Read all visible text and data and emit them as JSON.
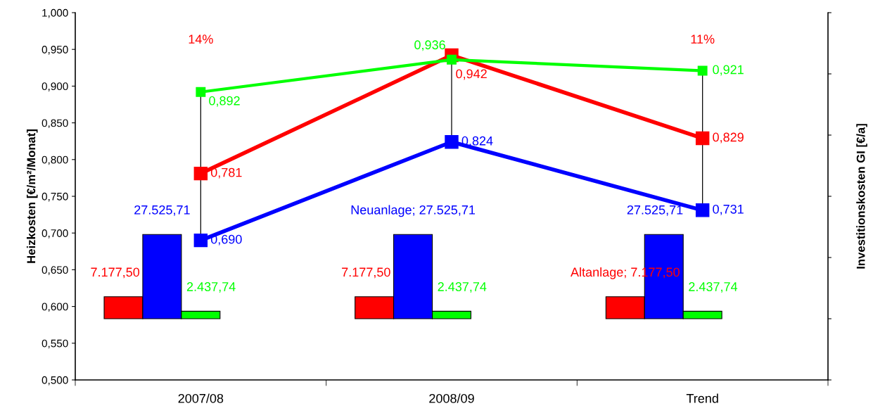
{
  "chart_data": {
    "type": "line",
    "ylabel": "Heizkosten [€/m²/Monat]",
    "y2label": "Investitionskosten GI [€/a]",
    "categories": [
      "2007/08",
      "2008/09",
      "Trend"
    ],
    "ylim": [
      0.5,
      1.0
    ],
    "yticks": [
      {
        "value": 0.5,
        "label": "0,500"
      },
      {
        "value": 0.55,
        "label": "0,550"
      },
      {
        "value": 0.6,
        "label": "0,600"
      },
      {
        "value": 0.65,
        "label": "0,650"
      },
      {
        "value": 0.7,
        "label": "0,700"
      },
      {
        "value": 0.75,
        "label": "0,750"
      },
      {
        "value": 0.8,
        "label": "0,800"
      },
      {
        "value": 0.85,
        "label": "0,850"
      },
      {
        "value": 0.9,
        "label": "0,900"
      },
      {
        "value": 0.95,
        "label": "0,950"
      },
      {
        "value": 1.0,
        "label": "1,000"
      }
    ],
    "y2lim": [
      -20000,
      100000
    ],
    "y2ticks": [
      {
        "value": -20000,
        "label": null
      },
      {
        "value": 0,
        "label": null
      },
      {
        "value": 20000,
        "label": null
      },
      {
        "value": 40000,
        "label": null
      },
      {
        "value": 60000,
        "label": null
      },
      {
        "value": 80000,
        "label": null
      },
      {
        "value": 100000,
        "label": null
      }
    ],
    "series": [
      {
        "type": "bar",
        "axis": "y2",
        "color": "#ff0000",
        "values": [
          7177.5,
          7177.5,
          7177.5
        ],
        "value_labels": [
          "7.177,50",
          "7.177,50",
          "Altanlage; 7.177,50"
        ]
      },
      {
        "type": "bar",
        "axis": "y2",
        "color": "#0000ff",
        "values": [
          27525.71,
          27525.71,
          27525.71
        ],
        "value_labels": [
          "27.525,71",
          "Neuanlage; 27.525,71",
          "27.525,71"
        ]
      },
      {
        "type": "bar",
        "axis": "y2",
        "color": "#00ff00",
        "values": [
          2437.74,
          2437.74,
          2437.74
        ],
        "value_labels": [
          "2.437,74",
          "2.437,74",
          "2.437,74"
        ]
      },
      {
        "color": "#00ff00",
        "values": [
          0.892,
          0.936,
          0.921
        ],
        "value_labels": [
          "0,892",
          "0,936",
          "0,921"
        ]
      },
      {
        "color": "#ff0000",
        "values": [
          0.781,
          0.942,
          0.829
        ],
        "value_labels": [
          "0,781",
          "0,942",
          "0,829"
        ]
      },
      {
        "color": "#0000ff",
        "values": [
          0.69,
          0.824,
          0.731
        ],
        "value_labels": [
          "0,690",
          "0,824",
          "0,731"
        ]
      }
    ],
    "annotations": [
      "14%",
      "11%"
    ],
    "marker": "square",
    "line_style": "solid",
    "grid": false,
    "legend": false
  }
}
